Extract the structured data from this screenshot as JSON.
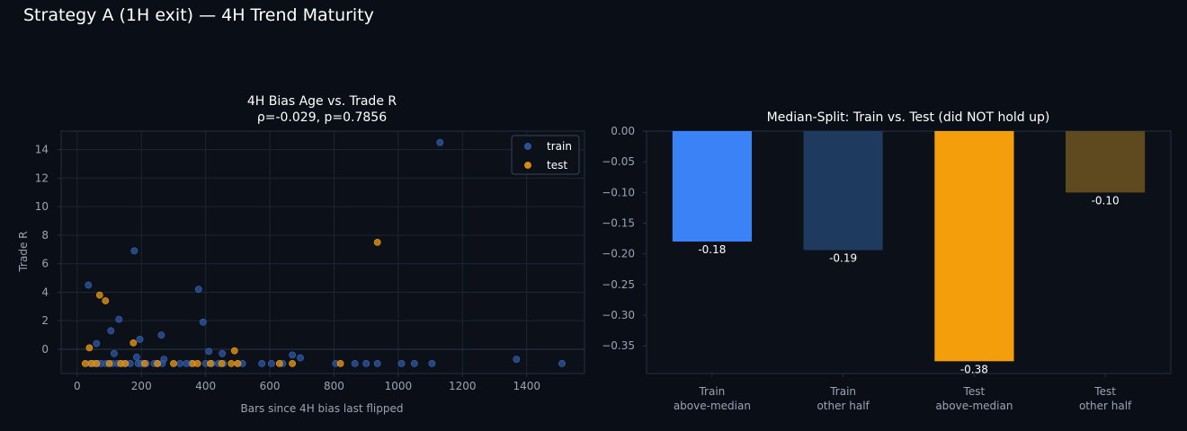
{
  "suptitle": "Strategy A (1H exit) — 4H Trend Maturity",
  "colors": {
    "background": "#0a0e17",
    "panel": "#0b1019",
    "grid": "#1e2634",
    "spine": "#263041",
    "tick_text": "#9aa4b4",
    "train_point": "#2a4f94",
    "test_point": "#d68a12"
  },
  "chart_data": [
    {
      "type": "scatter",
      "title_line1": "4H Bias Age vs. Trade R",
      "title_line2": "ρ=-0.029, p=0.7856",
      "xlabel": "Bars since 4H bias last flipped",
      "ylabel": "Trade R",
      "xlim": [
        -50,
        1580
      ],
      "ylim": [
        -1.7,
        15.3
      ],
      "xticks": [
        0,
        200,
        400,
        600,
        800,
        1000,
        1200,
        1400
      ],
      "yticks": [
        0,
        2,
        4,
        6,
        8,
        10,
        12,
        14
      ],
      "grid": true,
      "legend_position": "top-right",
      "series": [
        {
          "name": "train",
          "color": "#2a4f94",
          "points": [
            [
              35,
              4.5
            ],
            [
              60,
              0.4
            ],
            [
              105,
              1.3
            ],
            [
              115,
              -0.3
            ],
            [
              130,
              2.1
            ],
            [
              178,
              6.9
            ],
            [
              185,
              -0.55
            ],
            [
              195,
              0.7
            ],
            [
              262,
              1.0
            ],
            [
              270,
              -0.7
            ],
            [
              378,
              4.2
            ],
            [
              392,
              1.9
            ],
            [
              410,
              -0.15
            ],
            [
              452,
              -0.3
            ],
            [
              670,
              -0.4
            ],
            [
              695,
              -0.6
            ],
            [
              1130,
              14.5
            ],
            [
              1368,
              -0.7
            ],
            [
              40,
              -1.0
            ],
            [
              50,
              -1.0
            ],
            [
              55,
              -1.0
            ],
            [
              65,
              -1.0
            ],
            [
              75,
              -1.0
            ],
            [
              90,
              -1.0
            ],
            [
              110,
              -1.0
            ],
            [
              125,
              -1.0
            ],
            [
              140,
              -1.0
            ],
            [
              150,
              -1.0
            ],
            [
              165,
              -1.0
            ],
            [
              190,
              -1.0
            ],
            [
              200,
              -1.0
            ],
            [
              215,
              -1.0
            ],
            [
              240,
              -1.0
            ],
            [
              250,
              -1.0
            ],
            [
              265,
              -1.0
            ],
            [
              320,
              -1.0
            ],
            [
              340,
              -1.0
            ],
            [
              355,
              -1.0
            ],
            [
              400,
              -1.0
            ],
            [
              420,
              -1.0
            ],
            [
              440,
              -1.0
            ],
            [
              455,
              -1.0
            ],
            [
              500,
              -1.0
            ],
            [
              515,
              -1.0
            ],
            [
              575,
              -1.0
            ],
            [
              605,
              -1.0
            ],
            [
              640,
              -1.0
            ],
            [
              805,
              -1.0
            ],
            [
              865,
              -1.0
            ],
            [
              900,
              -1.0
            ],
            [
              935,
              -1.0
            ],
            [
              1010,
              -1.0
            ],
            [
              1050,
              -1.0
            ],
            [
              1105,
              -1.0
            ],
            [
              1510,
              -1.0
            ]
          ]
        },
        {
          "name": "test",
          "color": "#d68a12",
          "points": [
            [
              38,
              0.1
            ],
            [
              70,
              3.8
            ],
            [
              88,
              3.4
            ],
            [
              175,
              0.45
            ],
            [
              490,
              -0.1
            ],
            [
              935,
              7.5
            ],
            [
              25,
              -1.0
            ],
            [
              45,
              -1.0
            ],
            [
              60,
              -1.0
            ],
            [
              100,
              -1.0
            ],
            [
              135,
              -1.0
            ],
            [
              150,
              -1.0
            ],
            [
              210,
              -1.0
            ],
            [
              250,
              -1.0
            ],
            [
              300,
              -1.0
            ],
            [
              360,
              -1.0
            ],
            [
              375,
              -1.0
            ],
            [
              415,
              -1.0
            ],
            [
              450,
              -1.0
            ],
            [
              480,
              -1.0
            ],
            [
              500,
              -1.0
            ],
            [
              630,
              -1.0
            ],
            [
              670,
              -1.0
            ],
            [
              820,
              -1.0
            ]
          ]
        }
      ]
    },
    {
      "type": "bar",
      "title": "Median-Split: Train vs. Test (did NOT hold up)",
      "categories": [
        [
          "Train",
          "above-median"
        ],
        [
          "Train",
          "other half"
        ],
        [
          "Test",
          "above-median"
        ],
        [
          "Test",
          "other half"
        ]
      ],
      "values": [
        -0.18,
        -0.194,
        -0.375,
        -0.1
      ],
      "value_labels": [
        "-0.18",
        "-0.19",
        "-0.38",
        "-0.10"
      ],
      "bar_colors": [
        "#3b82f6",
        "#1e3a5f",
        "#f59e0b",
        "#5e4a1e"
      ],
      "ylim": [
        -0.395,
        0.0
      ],
      "yticks": [
        0.0,
        -0.05,
        -0.1,
        -0.15,
        -0.2,
        -0.25,
        -0.3,
        -0.35
      ],
      "ytick_labels": [
        "0.00",
        "−0.05",
        "−0.10",
        "−0.15",
        "−0.20",
        "−0.25",
        "−0.30",
        "−0.35"
      ],
      "grid": false
    }
  ]
}
